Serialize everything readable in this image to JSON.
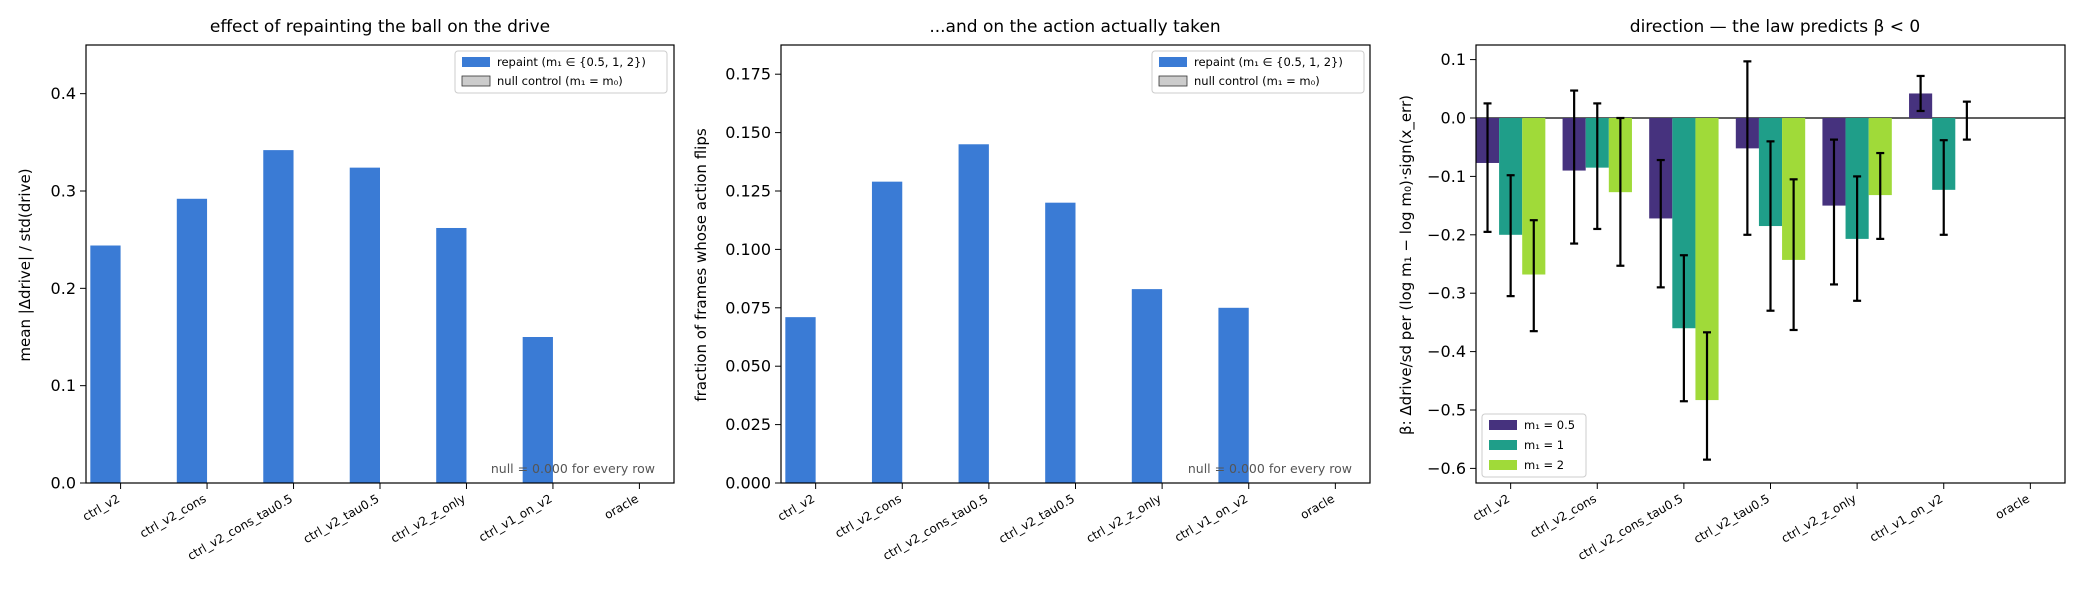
{
  "chart_data": [
    {
      "type": "bar",
      "title": "effect of repainting the ball on the drive",
      "xlabel": "",
      "ylabel": "mean |Δdrive| / std(drive)",
      "ylim": [
        0,
        0.45
      ],
      "yticks": [
        0.0,
        0.1,
        0.2,
        0.3,
        0.4
      ],
      "ytick_labels": [
        "0.0",
        "0.1",
        "0.2",
        "0.3",
        "0.4"
      ],
      "categories": [
        "ctrl_v2",
        "ctrl_v2_cons",
        "ctrl_v2_cons_tau0.5",
        "ctrl_v2_tau0.5",
        "ctrl_v2_z_only",
        "ctrl_v1_on_v2",
        "oracle"
      ],
      "series": [
        {
          "name": "repaint (m₁ ∈ {0.5, 1, 2})",
          "color": "#3a7bd5",
          "values": [
            0.244,
            0.292,
            0.342,
            0.324,
            0.262,
            0.15,
            0.0
          ]
        },
        {
          "name": "null control (m₁ = m₀)",
          "color": "#cccccc",
          "values": [
            0.0,
            0.0,
            0.0,
            0.0,
            0.0,
            0.0,
            0.0
          ]
        }
      ],
      "legend": "top-right",
      "annotation": "null = 0.000 for every row"
    },
    {
      "type": "bar",
      "title": "...and on the action actually taken",
      "xlabel": "",
      "ylabel": "fraction of frames whose action flips",
      "ylim": [
        0,
        0.1875
      ],
      "yticks": [
        0.0,
        0.025,
        0.05,
        0.075,
        0.1,
        0.125,
        0.15,
        0.175
      ],
      "ytick_labels": [
        "0.000",
        "0.025",
        "0.050",
        "0.075",
        "0.100",
        "0.125",
        "0.150",
        "0.175"
      ],
      "categories": [
        "ctrl_v2",
        "ctrl_v2_cons",
        "ctrl_v2_cons_tau0.5",
        "ctrl_v2_tau0.5",
        "ctrl_v2_z_only",
        "ctrl_v1_on_v2",
        "oracle"
      ],
      "series": [
        {
          "name": "repaint (m₁ ∈ {0.5, 1, 2})",
          "color": "#3a7bd5",
          "values": [
            0.071,
            0.129,
            0.145,
            0.12,
            0.083,
            0.075,
            0.0
          ]
        },
        {
          "name": "null control (m₁ = m₀)",
          "color": "#cccccc",
          "values": [
            0.0,
            0.0,
            0.0,
            0.0,
            0.0,
            0.0,
            0.0
          ]
        }
      ],
      "legend": "top-right",
      "annotation": "null = 0.000 for every row"
    },
    {
      "type": "bar",
      "title": "direction — the law predicts β < 0",
      "xlabel": "",
      "ylabel": "β:  Δdrive/sd  per  (log m₁ − log m₀)·sign(x_err)",
      "ylim": [
        -0.625,
        0.125
      ],
      "yticks": [
        -0.6,
        -0.5,
        -0.4,
        -0.3,
        -0.2,
        -0.1,
        0.0,
        0.1
      ],
      "ytick_labels": [
        "−0.6",
        "−0.5",
        "−0.4",
        "−0.3",
        "−0.2",
        "−0.1",
        "0.0",
        "0.1"
      ],
      "categories": [
        "ctrl_v2",
        "ctrl_v2_cons",
        "ctrl_v2_cons_tau0.5",
        "ctrl_v2_tau0.5",
        "ctrl_v2_z_only",
        "ctrl_v1_on_v2",
        "oracle"
      ],
      "series": [
        {
          "name": "m₁ = 0.5",
          "color": "#46327e",
          "values": [
            -0.077,
            -0.09,
            -0.172,
            -0.052,
            -0.15,
            0.042,
            0.0
          ],
          "err_low": [
            -0.195,
            -0.215,
            -0.29,
            -0.2,
            -0.285,
            0.012,
            0.0
          ],
          "err_high": [
            0.025,
            0.047,
            -0.072,
            0.097,
            -0.037,
            0.072,
            0.0
          ]
        },
        {
          "name": "m₁ = 1",
          "color": "#1f9e89",
          "values": [
            -0.2,
            -0.085,
            -0.36,
            -0.185,
            -0.207,
            -0.123,
            0.0
          ],
          "err_low": [
            -0.305,
            -0.19,
            -0.485,
            -0.33,
            -0.313,
            -0.2,
            0.0
          ],
          "err_high": [
            -0.098,
            0.025,
            -0.235,
            -0.04,
            -0.1,
            -0.038,
            0.0
          ],
          "err_shown": [
            true,
            true,
            true,
            true,
            true,
            true,
            false
          ]
        },
        {
          "name": "m₁ = 2",
          "color": "#a0da39",
          "values": [
            -0.268,
            -0.127,
            -0.483,
            -0.243,
            -0.132,
            0.0,
            0.0
          ],
          "err_low": [
            -0.365,
            -0.253,
            -0.585,
            -0.363,
            -0.207,
            -0.037,
            0.0
          ],
          "err_high": [
            -0.175,
            0.0,
            -0.367,
            -0.105,
            -0.06,
            0.028,
            0.0
          ],
          "err_shown": [
            true,
            true,
            true,
            true,
            true,
            true,
            false
          ]
        }
      ],
      "legend": "bottom-left",
      "reference_line": 0.0
    }
  ]
}
